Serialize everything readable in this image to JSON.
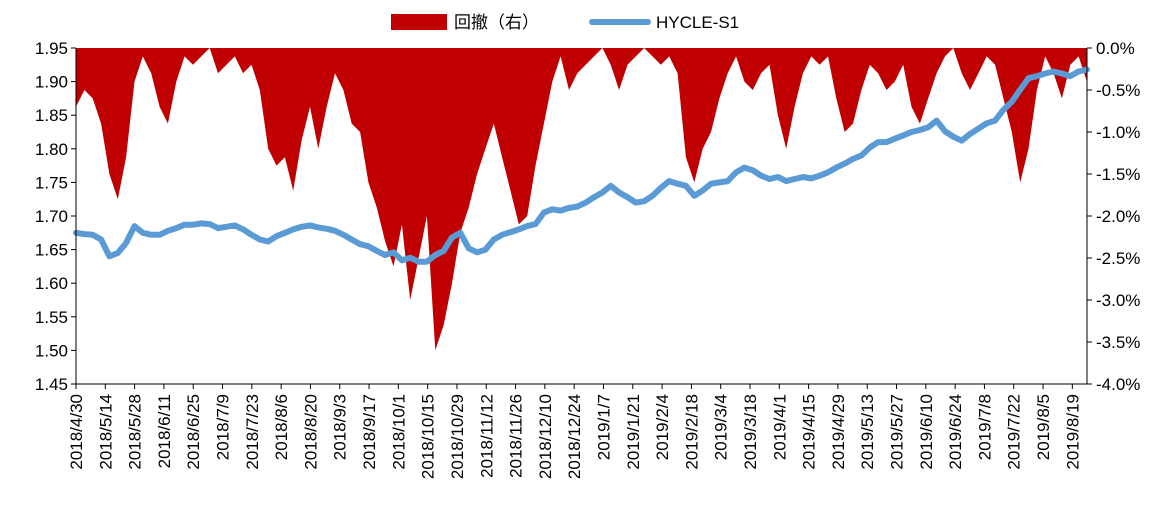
{
  "chart_data": {
    "type": "line",
    "title": "",
    "legend_position": "top",
    "series": [
      {
        "name": "回撤（右）",
        "kind": "area",
        "axis": "right",
        "color": "#C00000",
        "values": [
          -0.7,
          -0.5,
          -0.6,
          -0.9,
          -1.5,
          -1.8,
          -1.3,
          -0.4,
          -0.1,
          -0.3,
          -0.7,
          -0.9,
          -0.4,
          -0.1,
          -0.2,
          -0.1,
          0,
          -0.3,
          -0.2,
          -0.1,
          -0.3,
          -0.2,
          -0.5,
          -1.2,
          -1.4,
          -1.3,
          -1.7,
          -1.1,
          -0.7,
          -1.2,
          -0.7,
          -0.3,
          -0.5,
          -0.9,
          -1.0,
          -1.6,
          -1.9,
          -2.3,
          -2.6,
          -2.1,
          -3.0,
          -2.5,
          -2.0,
          -3.6,
          -3.3,
          -2.8,
          -2.2,
          -1.9,
          -1.5,
          -1.2,
          -0.9,
          -1.3,
          -1.7,
          -2.1,
          -2.0,
          -1.4,
          -0.9,
          -0.4,
          -0.1,
          -0.5,
          -0.3,
          -0.2,
          -0.1,
          0,
          -0.2,
          -0.5,
          -0.2,
          -0.1,
          0,
          -0.1,
          -0.2,
          -0.1,
          -0.3,
          -1.3,
          -1.6,
          -1.2,
          -1.0,
          -0.6,
          -0.3,
          -0.1,
          -0.4,
          -0.5,
          -0.3,
          -0.2,
          -0.8,
          -1.2,
          -0.7,
          -0.3,
          -0.1,
          -0.2,
          -0.1,
          -0.6,
          -1.0,
          -0.9,
          -0.5,
          -0.2,
          -0.3,
          -0.5,
          -0.4,
          -0.2,
          -0.7,
          -0.9,
          -0.6,
          -0.3,
          -0.1,
          0,
          -0.3,
          -0.5,
          -0.3,
          -0.1,
          -0.2,
          -0.6,
          -1.0,
          -1.6,
          -1.2,
          -0.5,
          -0.1,
          -0.3,
          -0.6,
          -0.2,
          -0.1,
          -0.4
        ]
      },
      {
        "name": "HYCLE-S1",
        "kind": "line",
        "axis": "left",
        "color": "#5B9BD5",
        "values": [
          1.675,
          1.673,
          1.672,
          1.665,
          1.64,
          1.645,
          1.66,
          1.685,
          1.675,
          1.672,
          1.672,
          1.678,
          1.682,
          1.687,
          1.687,
          1.689,
          1.688,
          1.682,
          1.684,
          1.686,
          1.68,
          1.672,
          1.665,
          1.662,
          1.67,
          1.675,
          1.68,
          1.684,
          1.686,
          1.683,
          1.681,
          1.678,
          1.672,
          1.665,
          1.658,
          1.655,
          1.648,
          1.642,
          1.646,
          1.634,
          1.638,
          1.632,
          1.632,
          1.642,
          1.648,
          1.668,
          1.675,
          1.652,
          1.646,
          1.65,
          1.665,
          1.672,
          1.676,
          1.68,
          1.685,
          1.688,
          1.705,
          1.71,
          1.708,
          1.712,
          1.714,
          1.72,
          1.728,
          1.735,
          1.745,
          1.735,
          1.728,
          1.72,
          1.722,
          1.73,
          1.742,
          1.752,
          1.748,
          1.745,
          1.73,
          1.738,
          1.748,
          1.75,
          1.752,
          1.765,
          1.772,
          1.768,
          1.76,
          1.755,
          1.758,
          1.752,
          1.755,
          1.758,
          1.756,
          1.76,
          1.765,
          1.772,
          1.778,
          1.785,
          1.79,
          1.802,
          1.81,
          1.81,
          1.815,
          1.82,
          1.825,
          1.828,
          1.832,
          1.842,
          1.826,
          1.818,
          1.812,
          1.822,
          1.83,
          1.838,
          1.842,
          1.858,
          1.87,
          1.888,
          1.905,
          1.908,
          1.912,
          1.915,
          1.912,
          1.908,
          1.915,
          1.918
        ]
      }
    ],
    "x_tick_labels": [
      "2018/4/30",
      "2018/5/14",
      "2018/5/28",
      "2018/6/11",
      "2018/6/25",
      "2018/7/9",
      "2018/7/23",
      "2018/8/6",
      "2018/8/20",
      "2018/9/3",
      "2018/9/17",
      "2018/10/1",
      "2018/10/15",
      "2018/10/29",
      "2018/11/12",
      "2018/11/26",
      "2018/12/10",
      "2018/12/24",
      "2019/1/7",
      "2019/1/21",
      "2019/2/4",
      "2019/2/18",
      "2019/3/4",
      "2019/3/18",
      "2019/4/1",
      "2019/4/15",
      "2019/4/29",
      "2019/5/13",
      "2019/5/27",
      "2019/6/10",
      "2019/6/24",
      "2019/7/8",
      "2019/7/22",
      "2019/8/5",
      "2019/8/19"
    ],
    "y_left": {
      "min": 1.45,
      "max": 1.95,
      "ticks": [
        "1.95",
        "1.90",
        "1.85",
        "1.80",
        "1.75",
        "1.70",
        "1.65",
        "1.60",
        "1.55",
        "1.50",
        "1.45"
      ]
    },
    "y_right": {
      "min": -4.0,
      "max": 0.0,
      "ticks": [
        "0.0%",
        "-0.5%",
        "-1.0%",
        "-1.5%",
        "-2.0%",
        "-2.5%",
        "-3.0%",
        "-3.5%",
        "-4.0%"
      ]
    },
    "grid": false
  }
}
